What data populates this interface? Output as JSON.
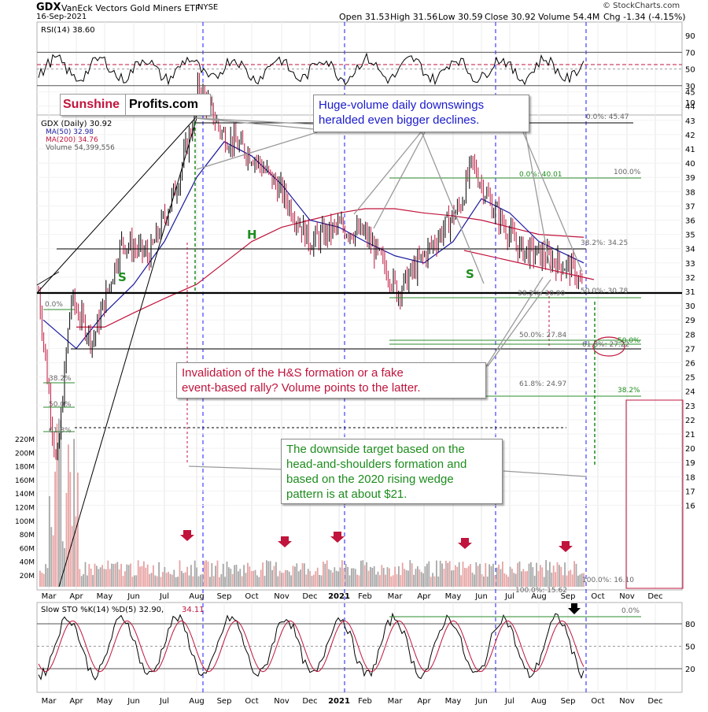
{
  "header": {
    "ticker": "GDX",
    "name": "VanEck Vectors Gold Miners ETF",
    "exchange": "NYSE",
    "date": "16-Sep-2021",
    "open": "Open 31.53",
    "high": "High 31.56",
    "low": "Low 30.59",
    "close": "Close 30.92",
    "volume": "Volume 54.4M",
    "change": "Chg -1.34 (-4.15%)",
    "copyright": "© StockCharts.com"
  },
  "logo": {
    "part1": "Sunshine",
    "part2": "Profits.com"
  },
  "legend": {
    "price": "GDX (Daily) 30.92",
    "ma50": "MA(50) 32.98",
    "ma200": "MA(200) 34.76",
    "volume": "Volume 54,399,556"
  },
  "rsi_panel": {
    "label": "RSI(14) 38.60"
  },
  "sto_panel": {
    "label": "Slow STO %K(14) %D(5) 32.90,",
    "label2": "34.11"
  },
  "callouts": {
    "downswings_l1": "Huge-volume daily downswings",
    "downswings_l2": "heralded even bigger declines.",
    "invalid_l1": "Invalidation of the H&S formation or a fake",
    "invalid_l2": "event-based rally? Volume points to the latter.",
    "target_l1": "The downside target based on the",
    "target_l2": "head-and-shoulders formation and",
    "target_l3": "based on the 2020 rising wedge",
    "target_l4": "pattern is at about $21."
  },
  "pattern_labels": {
    "left_shoulder": "S",
    "head": "H",
    "right_shoulder": "S"
  },
  "colors": {
    "price": "#000000",
    "ma50": "#1a1aa0",
    "ma200": "#c0143c",
    "volume": "#888888",
    "fib_green": "#2e8b2e",
    "vline_blue": "#1a1aff",
    "red_callout": "#c0143c",
    "green_callout": "#1e8c1e",
    "blue_callout": "#1a1acc"
  },
  "chart_data": {
    "type": "line",
    "title": "GDX VanEck Vectors Gold Miners ETF NYSE",
    "x_ticks": [
      "Mar",
      "Apr",
      "May",
      "Jun",
      "Jul",
      "Aug",
      "Sep",
      "Oct",
      "Nov",
      "Dec",
      "2021",
      "Feb",
      "Mar",
      "Apr",
      "May",
      "Jun",
      "Jul",
      "Aug",
      "Sep",
      "Oct",
      "Nov",
      "Dec"
    ],
    "y_ticks": [
      "45",
      "44",
      "43",
      "42",
      "41",
      "40",
      "39",
      "38",
      "37",
      "36",
      "35",
      "34",
      "33",
      "32",
      "31",
      "30",
      "29",
      "28",
      "27",
      "26",
      "25",
      "24",
      "23",
      "22",
      "21",
      "20",
      "19",
      "18",
      "17",
      "16"
    ],
    "ylim": [
      16,
      46
    ],
    "volume_ticks": [
      "220M",
      "200M",
      "180M",
      "160M",
      "140M",
      "120M",
      "100M",
      "80M",
      "60M",
      "40M",
      "20M"
    ],
    "rsi_ticks": [
      "90",
      "70",
      "50",
      "30",
      "10"
    ],
    "sto_ticks": [
      "80",
      "50",
      "20"
    ],
    "fib_labels": [
      "0.0%: 45.47",
      "0.0%: 40.01",
      "100.0%",
      "38.2%: 34.25",
      "50.0%: 30.78",
      "38.2%: 30.90",
      "50.0%: 27.84",
      "61.8%: 27.22",
      "50.0%",
      "61.8%: 24.97",
      "38.2%",
      "0.0%",
      "38.2%",
      "50.0%",
      "61.8%",
      "100.0%: 16.10",
      "100.0%: 15.62",
      "0.0%"
    ],
    "series": [
      {
        "name": "GDX (Daily) 30.92",
        "x": [
          "Mar",
          "Mar",
          "Apr",
          "Apr",
          "May",
          "Jun",
          "Jul",
          "Aug",
          "Aug",
          "Sep",
          "Oct",
          "Nov",
          "Dec",
          "2021",
          "Feb",
          "Mar",
          "Mar",
          "Apr",
          "May",
          "May",
          "Jun",
          "Jul",
          "Aug",
          "Sep",
          "Sep"
        ],
        "values": [
          31.0,
          18.5,
          30.5,
          27.5,
          34.5,
          33.5,
          38.5,
          43.5,
          45.5,
          42.0,
          40.5,
          38.0,
          34.5,
          35.5,
          35.0,
          32.0,
          30.9,
          33.5,
          37.0,
          40.0,
          37.0,
          34.0,
          33.5,
          32.5,
          30.9
        ]
      },
      {
        "name": "MA(50) 32.98",
        "x": [
          "Mar",
          "Apr",
          "May",
          "Jun",
          "Jul",
          "Aug",
          "Sep",
          "Oct",
          "Nov",
          "Dec",
          "2021",
          "Feb",
          "Mar",
          "Apr",
          "May",
          "Jun",
          "Jul",
          "Aug",
          "Sep"
        ],
        "values": [
          29.0,
          27.0,
          29.5,
          31.5,
          34.5,
          39.0,
          41.5,
          40.5,
          38.5,
          36.0,
          35.5,
          34.5,
          33.5,
          33.0,
          34.5,
          37.5,
          36.5,
          34.5,
          33.0
        ]
      },
      {
        "name": "MA(200) 34.76",
        "x": [
          "Apr",
          "May",
          "Jun",
          "Jul",
          "Aug",
          "Sep",
          "Oct",
          "Nov",
          "Dec",
          "2021",
          "Feb",
          "Mar",
          "Apr",
          "May",
          "Jun",
          "Jul",
          "Aug",
          "Sep"
        ],
        "values": [
          28.5,
          28.5,
          29.5,
          30.5,
          31.5,
          33.0,
          34.5,
          35.5,
          36.0,
          36.5,
          36.8,
          36.8,
          36.5,
          36.3,
          36.0,
          35.5,
          35.0,
          34.8
        ]
      }
    ]
  }
}
